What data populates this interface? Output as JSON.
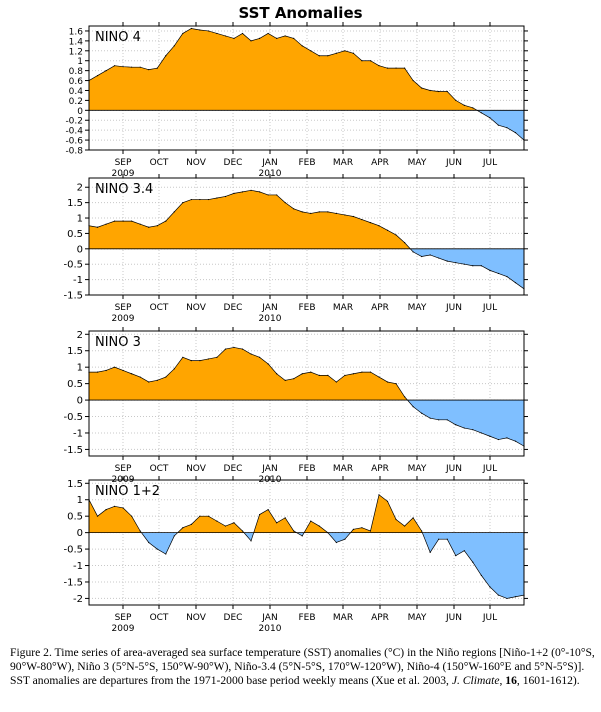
{
  "title": "SST Anomalies",
  "colors": {
    "positive": "#ffa500",
    "negative": "#7fbfff",
    "grid": "#c8c8c8",
    "frame": "#000000"
  },
  "months": [
    "SEP",
    "OCT",
    "NOV",
    "DEC",
    "JAN",
    "FEB",
    "MAR",
    "APR",
    "MAY",
    "JUN",
    "JUL"
  ],
  "years": [
    {
      "under": "SEP",
      "label": "2009"
    },
    {
      "under": "JAN",
      "label": "2010"
    }
  ],
  "caption": {
    "p1": "Figure 2. Time series of area-averaged sea surface temperature (SST) anomalies (°C) in the Niño regions [Niño-1+2 (0°-10°S, 90°W-80°W), Niño 3 (5°N-5°S, 150°W-90°W), Niño-3.4 (5°N-5°S, 170°W-120°W), Niño-4 (150°W-160°E and 5°N-5°S)]. SST anomalies are departures from the 1971-2000 base period weekly means (Xue et al. 2003, ",
    "journal": "J. Climate",
    "p2": ", ",
    "volume": "16",
    "p3": ", 1601-1612)."
  },
  "chart_data": [
    {
      "type": "area",
      "title": "NINO 4",
      "ylim": [
        -0.8,
        1.7
      ],
      "yticks": [
        1.6,
        1.4,
        1.2,
        1,
        0.8,
        0.6,
        0.4,
        0.2,
        0,
        -0.2,
        -0.4,
        -0.6,
        -0.8
      ],
      "ytick_labels": [
        "1.6",
        "1.4",
        "1.2",
        "1",
        "0.8",
        "0.6",
        "0.4",
        "0.2",
        "0",
        "-0.2",
        "-0.4",
        "-0.6",
        "-0.8"
      ],
      "x": [
        0,
        1,
        2,
        3,
        4,
        5,
        6,
        7,
        8,
        9,
        10,
        11,
        12,
        13,
        14,
        15,
        16,
        17,
        18,
        19,
        20,
        21,
        22,
        23,
        24,
        25,
        26,
        27,
        28,
        29,
        30,
        31,
        32,
        33,
        34,
        35,
        36,
        37,
        38,
        39,
        40,
        41,
        42,
        43,
        44,
        45,
        46,
        47,
        48,
        49,
        50,
        51
      ],
      "values": [
        0.6,
        0.7,
        0.8,
        0.9,
        0.88,
        0.87,
        0.87,
        0.82,
        0.85,
        1.1,
        1.3,
        1.55,
        1.65,
        1.62,
        1.6,
        1.55,
        1.5,
        1.45,
        1.55,
        1.4,
        1.45,
        1.55,
        1.45,
        1.5,
        1.45,
        1.3,
        1.2,
        1.1,
        1.1,
        1.15,
        1.2,
        1.15,
        1.0,
        1.0,
        0.9,
        0.85,
        0.85,
        0.85,
        0.6,
        0.45,
        0.4,
        0.38,
        0.38,
        0.2,
        0.1,
        0.05,
        -0.05,
        -0.15,
        -0.3,
        -0.35,
        -0.45,
        -0.6
      ]
    },
    {
      "type": "area",
      "title": "NINO 3.4",
      "ylim": [
        -1.5,
        2.3
      ],
      "yticks": [
        2,
        1.5,
        1,
        0.5,
        0,
        -0.5,
        -1,
        -1.5
      ],
      "ytick_labels": [
        "2",
        "1.5",
        "1",
        "0.5",
        "0",
        "-0.5",
        "-1",
        "-1.5"
      ],
      "x": [
        0,
        1,
        2,
        3,
        4,
        5,
        6,
        7,
        8,
        9,
        10,
        11,
        12,
        13,
        14,
        15,
        16,
        17,
        18,
        19,
        20,
        21,
        22,
        23,
        24,
        25,
        26,
        27,
        28,
        29,
        30,
        31,
        32,
        33,
        34,
        35,
        36,
        37,
        38,
        39,
        40,
        41,
        42,
        43,
        44,
        45,
        46,
        47,
        48,
        49,
        50,
        51
      ],
      "values": [
        0.75,
        0.7,
        0.8,
        0.9,
        0.9,
        0.9,
        0.8,
        0.7,
        0.75,
        0.9,
        1.2,
        1.5,
        1.6,
        1.6,
        1.6,
        1.65,
        1.7,
        1.8,
        1.85,
        1.9,
        1.85,
        1.75,
        1.75,
        1.5,
        1.3,
        1.2,
        1.15,
        1.2,
        1.2,
        1.15,
        1.1,
        1.05,
        0.95,
        0.85,
        0.75,
        0.6,
        0.45,
        0.2,
        -0.1,
        -0.25,
        -0.2,
        -0.3,
        -0.4,
        -0.45,
        -0.5,
        -0.55,
        -0.55,
        -0.7,
        -0.8,
        -0.9,
        -1.1,
        -1.3
      ]
    },
    {
      "type": "area",
      "title": "NINO 3",
      "ylim": [
        -1.7,
        2.1
      ],
      "yticks": [
        2,
        1.5,
        1,
        0.5,
        0,
        -0.5,
        -1,
        -1.5
      ],
      "ytick_labels": [
        "2",
        "1.5",
        "1",
        "0.5",
        "0",
        "-0.5",
        "-1",
        "-1.5"
      ],
      "x": [
        0,
        1,
        2,
        3,
        4,
        5,
        6,
        7,
        8,
        9,
        10,
        11,
        12,
        13,
        14,
        15,
        16,
        17,
        18,
        19,
        20,
        21,
        22,
        23,
        24,
        25,
        26,
        27,
        28,
        29,
        30,
        31,
        32,
        33,
        34,
        35,
        36,
        37,
        38,
        39,
        40,
        41,
        42,
        43,
        44,
        45,
        46,
        47,
        48,
        49,
        50,
        51
      ],
      "values": [
        0.85,
        0.85,
        0.9,
        1.0,
        0.9,
        0.8,
        0.7,
        0.55,
        0.6,
        0.7,
        0.95,
        1.3,
        1.2,
        1.2,
        1.25,
        1.3,
        1.55,
        1.6,
        1.55,
        1.4,
        1.3,
        1.1,
        0.8,
        0.6,
        0.65,
        0.8,
        0.85,
        0.75,
        0.75,
        0.55,
        0.75,
        0.8,
        0.85,
        0.85,
        0.7,
        0.55,
        0.5,
        0.1,
        -0.2,
        -0.4,
        -0.55,
        -0.6,
        -0.6,
        -0.75,
        -0.85,
        -0.9,
        -1.0,
        -1.1,
        -1.2,
        -1.15,
        -1.25,
        -1.4
      ]
    },
    {
      "type": "area",
      "title": "NINO 1+2",
      "ylim": [
        -2.2,
        1.6
      ],
      "yticks": [
        1.5,
        1,
        0.5,
        0,
        -0.5,
        -1,
        -1.5,
        -2
      ],
      "ytick_labels": [
        "1.5",
        "1",
        "0.5",
        "0",
        "-0.5",
        "-1",
        "-1.5",
        "-2"
      ],
      "x": [
        0,
        1,
        2,
        3,
        4,
        5,
        6,
        7,
        8,
        9,
        10,
        11,
        12,
        13,
        14,
        15,
        16,
        17,
        18,
        19,
        20,
        21,
        22,
        23,
        24,
        25,
        26,
        27,
        28,
        29,
        30,
        31,
        32,
        33,
        34,
        35,
        36,
        37,
        38,
        39,
        40,
        41,
        42,
        43,
        44,
        45,
        46,
        47,
        48,
        49,
        50,
        51
      ],
      "values": [
        1.0,
        0.5,
        0.7,
        0.8,
        0.75,
        0.5,
        0.05,
        -0.3,
        -0.5,
        -0.65,
        -0.1,
        0.15,
        0.25,
        0.5,
        0.5,
        0.35,
        0.2,
        0.3,
        0.05,
        -0.25,
        0.55,
        0.7,
        0.3,
        0.45,
        0.05,
        -0.1,
        0.35,
        0.2,
        0.0,
        -0.3,
        -0.2,
        0.1,
        0.15,
        0.05,
        1.15,
        0.95,
        0.4,
        0.2,
        0.45,
        0.05,
        -0.6,
        -0.2,
        -0.2,
        -0.7,
        -0.55,
        -0.9,
        -1.3,
        -1.65,
        -1.9,
        -2.0,
        -1.95,
        -1.9
      ]
    }
  ]
}
